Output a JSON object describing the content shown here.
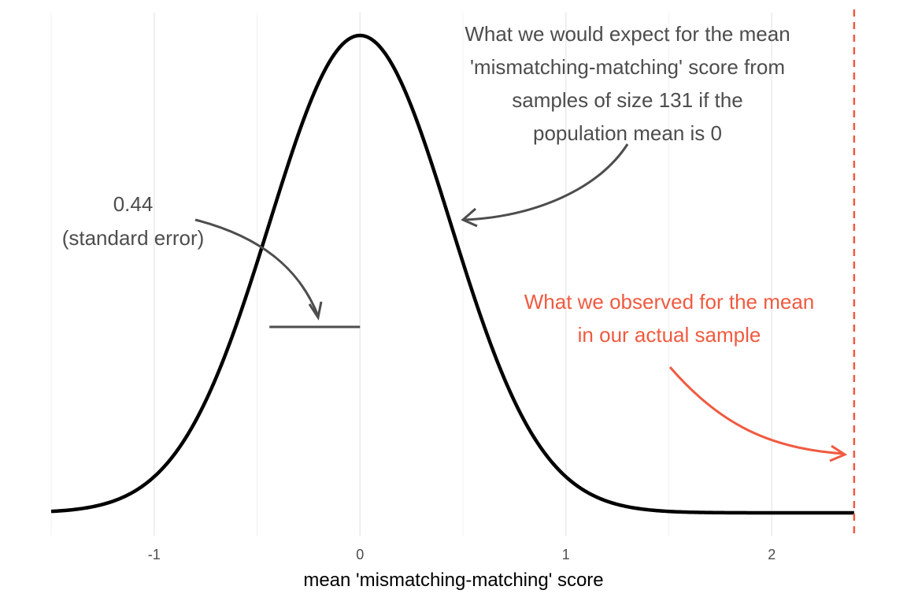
{
  "chart_data": {
    "type": "line",
    "title": "",
    "xlabel": "mean 'mismatching-matching' score",
    "ylabel": "",
    "xlim": [
      -1.5,
      2.5
    ],
    "x_ticks": [
      -1,
      0,
      1,
      2
    ],
    "x_tick_labels": [
      "-1",
      "0",
      "1",
      "2"
    ],
    "x_minor_gridlines": [
      -1.5,
      -0.5,
      0.5,
      1.5
    ],
    "grid": "vertical only",
    "series": [
      {
        "distribution": "normal",
        "mean": 0,
        "sd": 0.44,
        "color": "#000000"
      }
    ],
    "standard_error_segment": {
      "x_start": -0.44,
      "x_end": 0,
      "label_value": "0.44",
      "label_text": "(standard error)"
    },
    "observed_mean": {
      "x": 2.4,
      "color": "#f05a40",
      "style": "dashed"
    },
    "annotations": {
      "expected": [
        "What we would expect for the mean",
        "'mismatching-matching' score from",
        "samples of size 131 if the",
        "population mean is 0"
      ],
      "se_value": "0.44",
      "se_label": "(standard error)",
      "observed": [
        "What we observed for the mean",
        "in our actual sample"
      ]
    },
    "annotation_color_dark": "#4d4d4d",
    "annotation_color_observed": "#f05a40"
  }
}
